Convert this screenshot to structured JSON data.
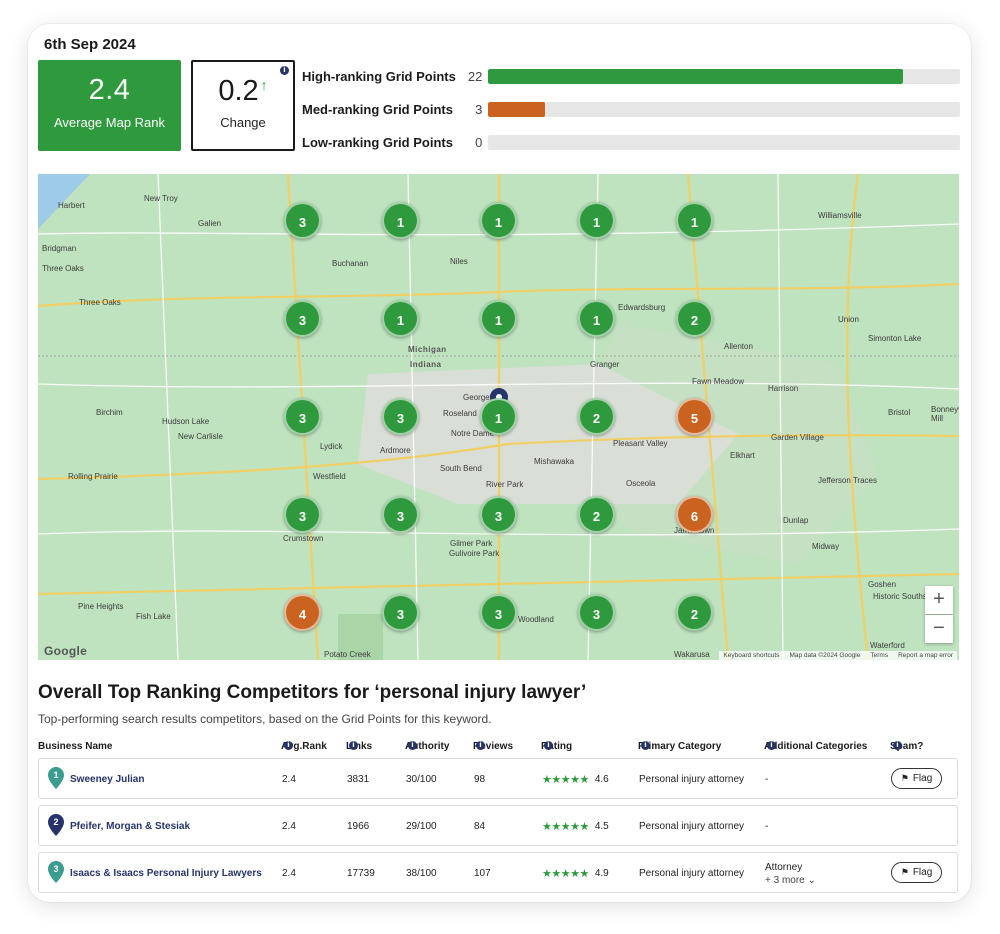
{
  "report": {
    "date": "6th Sep 2024",
    "average_map_rank": {
      "value": "2.4",
      "label": "Average Map Rank"
    },
    "change": {
      "value": "0.2",
      "label": "Change",
      "direction": "up"
    }
  },
  "grid_summary": [
    {
      "label": "High-ranking Grid Points",
      "count": "22",
      "fraction": 0.88,
      "color": "#2f9a3d"
    },
    {
      "label": "Med-ranking Grid Points",
      "count": "3",
      "fraction": 0.12,
      "color": "#c9631f"
    },
    {
      "label": "Low-ranking Grid Points",
      "count": "0",
      "fraction": 0,
      "color": "#cccccc"
    }
  ],
  "map": {
    "grid_ranks": [
      [
        "3",
        "1",
        "1",
        "1",
        "1"
      ],
      [
        "3",
        "1",
        "1",
        "1",
        "2"
      ],
      [
        "3",
        "3",
        "1",
        "2",
        "5"
      ],
      [
        "3",
        "3",
        "3",
        "2",
        "6"
      ],
      [
        "4",
        "3",
        "3",
        "3",
        "2"
      ]
    ],
    "labels": [
      "Harbert",
      "New Troy",
      "Galien",
      "Buchanan",
      "Niles",
      "Three Oaks",
      "Edwardsburg",
      "Union",
      "Allenton",
      "Granger",
      "Fawn Meadow",
      "Bristol",
      "Bonneyville Mill",
      "Bridgman",
      "Three Oaks",
      "Michigan",
      "Indiana",
      "Roseland",
      "Notre Dame",
      "Georgetown",
      "Pleasant Valley",
      "Garden Village",
      "Birchim",
      "Hudson Lake",
      "New Carlisle",
      "Lydick",
      "Ardmore",
      "Rolling Prairie",
      "South Bend",
      "Mishawaka",
      "Elkhart",
      "Westfield",
      "River Park",
      "Osceola",
      "Jefferson Traces",
      "Dunlap",
      "Crumstown",
      "Gilmer Park",
      "Gulivoire Park",
      "Jamestown",
      "Midway",
      "Goshen",
      "Historic Southside",
      "Pine Heights",
      "Fish Lake",
      "Woodland",
      "Waterford",
      "Potato Creek",
      "Wakarusa",
      "Williamsville",
      "Simonton Lake",
      "Harrison"
    ],
    "zoom_in": "+",
    "zoom_out": "−",
    "google_logo": "Google",
    "attribution": [
      "Keyboard shortcuts",
      "Map data ©2024 Google",
      "Terms",
      "Report a map error"
    ]
  },
  "competitors": {
    "title": "Overall Top Ranking Competitors for ‘personal injury lawyer’",
    "subtitle": "Top-performing search results competitors, based on the Grid Points for this keyword.",
    "columns": [
      "Business Name",
      "Avg.Rank",
      "Links",
      "Authority",
      "Reviews",
      "Rating",
      "Primary Category",
      "Additional Categories",
      "Spam?"
    ],
    "rows": [
      {
        "rank": "1",
        "name": "Sweeney Julian",
        "avg_rank": "2.4",
        "links": "3831",
        "authority": "30/100",
        "reviews": "98",
        "rating": "4.6",
        "stars": "★★★★★",
        "primary": "Personal injury attorney",
        "additional": "-",
        "more": "",
        "flag": "Flag",
        "marker_color": "#3a9d8f"
      },
      {
        "rank": "2",
        "name": "Pfeifer, Morgan & Stesiak",
        "avg_rank": "2.4",
        "links": "1966",
        "authority": "29/100",
        "reviews": "84",
        "rating": "4.5",
        "stars": "★★★★★",
        "primary": "Personal injury attorney",
        "additional": "-",
        "more": "",
        "flag": "",
        "marker_color": "#26346b"
      },
      {
        "rank": "3",
        "name": "Isaacs & Isaacs Personal Injury Lawyers",
        "avg_rank": "2.4",
        "links": "17739",
        "authority": "38/100",
        "reviews": "107",
        "rating": "4.9",
        "stars": "★★★★★",
        "primary": "Personal injury attorney",
        "additional": "Attorney",
        "more": "+ 3 more ⌄",
        "flag": "Flag",
        "marker_color": "#3a9d8f"
      }
    ]
  }
}
